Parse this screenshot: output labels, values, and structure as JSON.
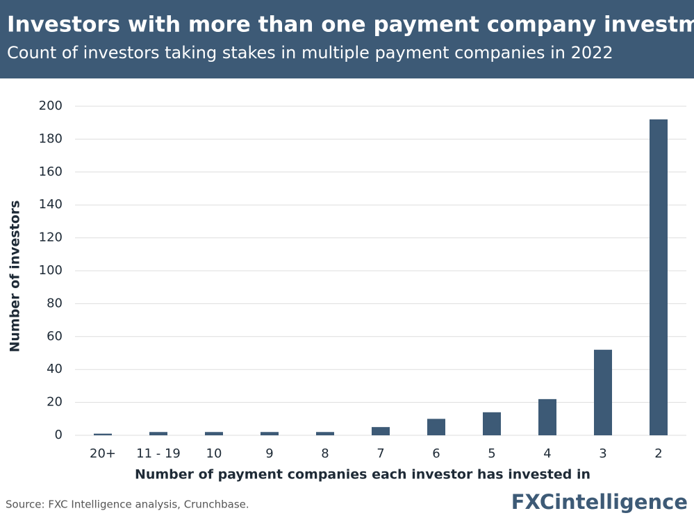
{
  "chart_data": {
    "type": "bar",
    "title": "Investors with more than one payment company investment",
    "subtitle": "Count of investors taking stakes in multiple payment companies in 2022",
    "x_label": "Number of payment companies each investor has invested in",
    "y_label": "Number of investors",
    "categories": [
      "20+",
      "11 - 19",
      "10",
      "9",
      "8",
      "7",
      "6",
      "5",
      "4",
      "3",
      "2"
    ],
    "values": [
      1,
      2,
      2,
      2,
      2,
      5,
      10,
      14,
      22,
      52,
      192
    ],
    "color": "#3d5a76",
    "ylim": [
      0,
      200
    ],
    "yticks": [
      0,
      20,
      40,
      60,
      80,
      100,
      120,
      140,
      160,
      180,
      200
    ],
    "grid": true,
    "source": "Source: FXC Intelligence analysis, Crunchbase.",
    "logo": "FXCintelligence"
  }
}
